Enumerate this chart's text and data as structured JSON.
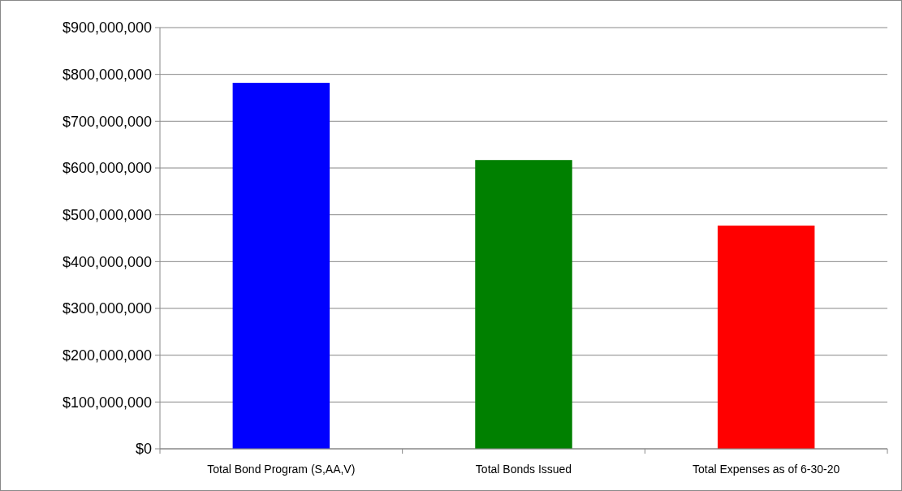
{
  "chart_data": {
    "type": "bar",
    "categories": [
      "Total Bond Program (S,AA,V)",
      "Total Bonds Issued",
      "Total Expenses as of 6-30-20"
    ],
    "values": [
      782000000,
      617000000,
      477000000
    ],
    "colors": [
      "#0000ff",
      "#008000",
      "#ff0000"
    ],
    "ylim": [
      0,
      900000000
    ],
    "yticks": [
      {
        "value": 0,
        "label": "$0"
      },
      {
        "value": 100000000,
        "label": "$100,000,000"
      },
      {
        "value": 200000000,
        "label": "$200,000,000"
      },
      {
        "value": 300000000,
        "label": "$300,000,000"
      },
      {
        "value": 400000000,
        "label": "$400,000,000"
      },
      {
        "value": 500000000,
        "label": "$500,000,000"
      },
      {
        "value": 600000000,
        "label": "$600,000,000"
      },
      {
        "value": 700000000,
        "label": "$700,000,000"
      },
      {
        "value": 800000000,
        "label": "$800,000,000"
      },
      {
        "value": 900000000,
        "label": "$900,000,000"
      }
    ],
    "grid": "y"
  }
}
